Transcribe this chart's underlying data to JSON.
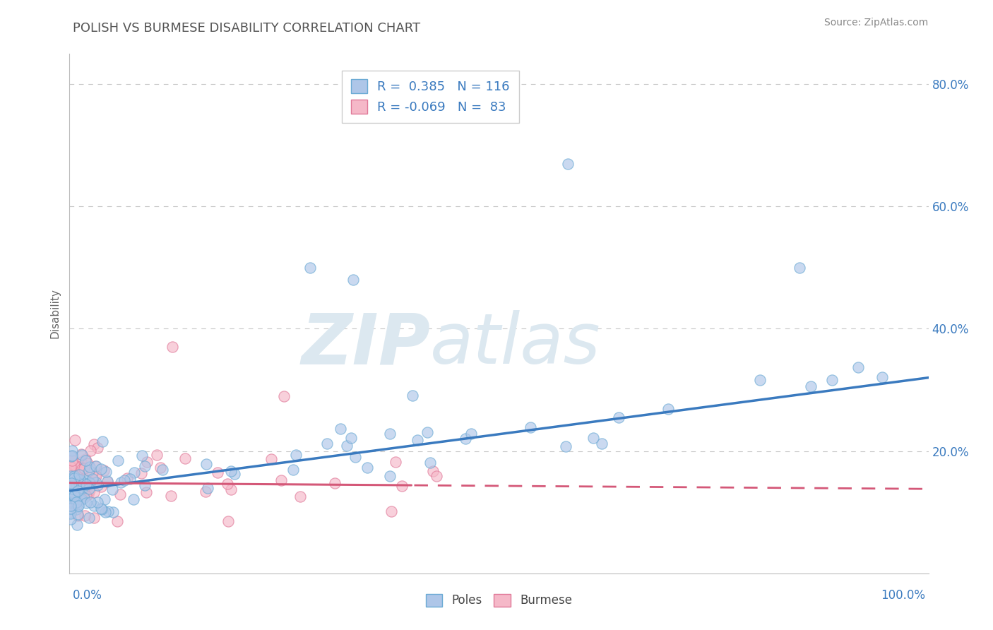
{
  "title": "POLISH VS BURMESE DISABILITY CORRELATION CHART",
  "source": "Source: ZipAtlas.com",
  "ylabel": "Disability",
  "poles_R": 0.385,
  "poles_N": 116,
  "burmese_R": -0.069,
  "burmese_N": 83,
  "poles_color": "#aec6e8",
  "poles_edge_color": "#6aaad4",
  "poles_line_color": "#3a7abf",
  "burmese_color": "#f5b8c8",
  "burmese_edge_color": "#e07898",
  "burmese_line_color": "#d45878",
  "background_color": "#ffffff",
  "grid_color": "#c8c8c8",
  "title_color": "#555555",
  "legend_text_color": "#3a7abf",
  "watermark_color": "#dce8f0",
  "ylim": [
    0.0,
    0.85
  ],
  "xlim": [
    0.0,
    1.0
  ],
  "yticks": [
    0.0,
    0.2,
    0.4,
    0.6,
    0.8
  ],
  "ytick_labels": [
    "",
    "20.0%",
    "40.0%",
    "60.0%",
    "80.0%"
  ],
  "poles_line_intercept": 0.135,
  "poles_line_slope": 0.185,
  "burmese_line_intercept": 0.148,
  "burmese_line_slope": -0.01
}
